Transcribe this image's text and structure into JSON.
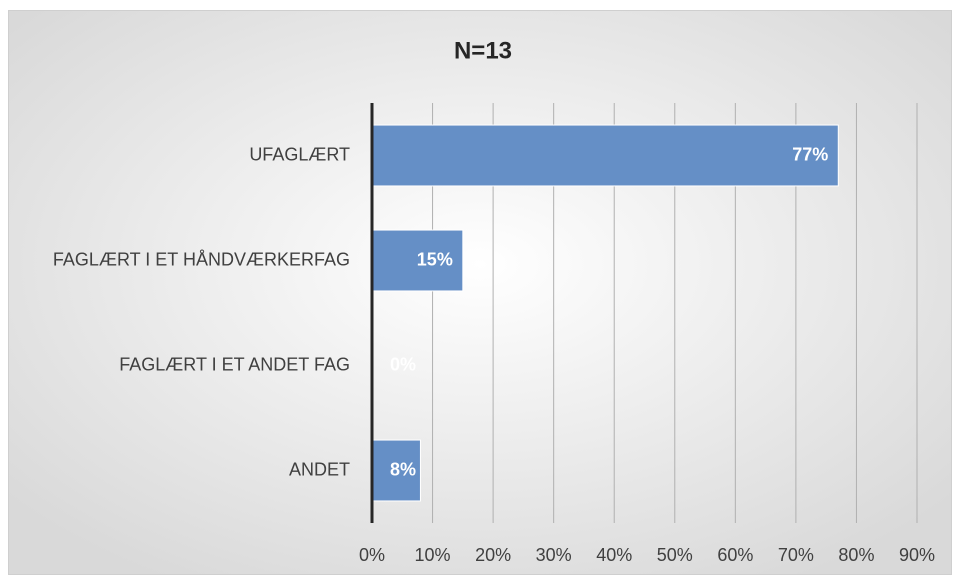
{
  "chart_data": {
    "type": "bar",
    "orientation": "horizontal",
    "title": "N=13",
    "categories": [
      "UFAGLÆRT",
      "FAGLÆRT I ET HÅNDVÆRKERFAG",
      "FAGLÆRT I ET ANDET FAG",
      "ANDET"
    ],
    "values": [
      77,
      15,
      0,
      8
    ],
    "value_labels": [
      "77%",
      "15%",
      "0%",
      "8%"
    ],
    "color": "#658fc6",
    "xlim": [
      0,
      90
    ],
    "xticks": [
      {
        "value": 0,
        "label": "0%"
      },
      {
        "value": 10,
        "label": "10%"
      },
      {
        "value": 20,
        "label": "20%"
      },
      {
        "value": 30,
        "label": "30%"
      },
      {
        "value": 40,
        "label": "40%"
      },
      {
        "value": 50,
        "label": "50%"
      },
      {
        "value": 60,
        "label": "60%"
      },
      {
        "value": 70,
        "label": "70%"
      },
      {
        "value": 80,
        "label": "80%"
      },
      {
        "value": 90,
        "label": "90%"
      }
    ],
    "grid": true
  }
}
